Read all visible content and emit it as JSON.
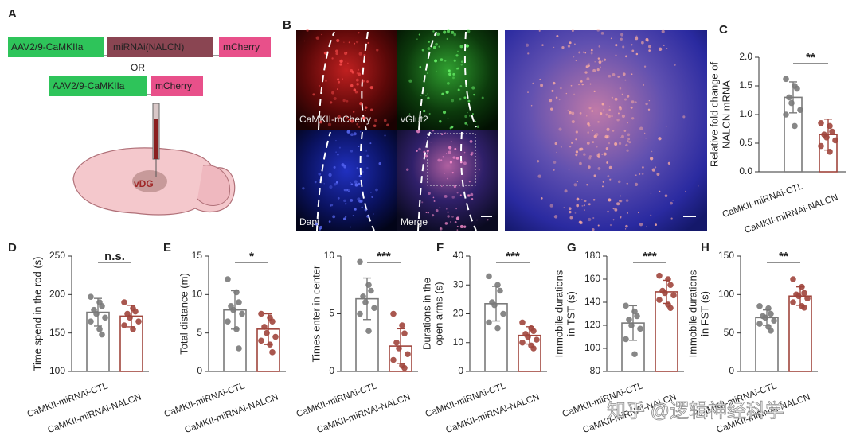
{
  "panel_a": {
    "label": "A",
    "construct_1": [
      "AAV2/9-CaMKIIa",
      "miRNAi(NALCN)",
      "mCherry"
    ],
    "or": "OR",
    "construct_2": [
      "AAV2/9-CaMKIIa",
      "mCherry"
    ],
    "region": "vDG"
  },
  "panel_b": {
    "label": "B",
    "channels": [
      "CaMKII-mCherry",
      "vGlut2",
      "Dapi",
      "Merge"
    ]
  },
  "chart_data": [
    {
      "type": "bar",
      "label": "C",
      "ylabel": [
        "Relative fold change of",
        "NALCN mRNA"
      ],
      "categories": [
        "CaMKII-miRNAi-CTL",
        "CaMKII-miRNAi-NALCN"
      ],
      "colors": [
        "#7a7a7a",
        "#a0453c"
      ],
      "values": [
        1.3,
        0.65
      ],
      "errors": [
        0.27,
        0.27
      ],
      "points": [
        [
          1.62,
          1.5,
          1.45,
          1.3,
          1.2,
          1.08,
          1.0,
          0.8
        ],
        [
          0.85,
          0.8,
          0.7,
          0.65,
          0.6,
          0.55,
          0.45,
          0.35
        ]
      ],
      "significance": "**",
      "ylim": [
        0,
        2.0
      ],
      "yticks": [
        {
          "value": 0,
          "label": "0.0"
        },
        0.5,
        {
          "value": 1,
          "label": "1.0"
        },
        1.5,
        {
          "value": 2,
          "label": "2.0"
        }
      ]
    },
    {
      "type": "bar",
      "label": "D",
      "ylabel": [
        "Time spend in the rod (s)"
      ],
      "categories": [
        "CaMKII-miRNAi-CTL",
        "CaMKII-miRNAi-NALCN"
      ],
      "colors": [
        "#7a7a7a",
        "#a0453c"
      ],
      "values": [
        177,
        172
      ],
      "errors": [
        18,
        14
      ],
      "points": [
        [
          197,
          190,
          185,
          180,
          175,
          170,
          165,
          155,
          148
        ],
        [
          190,
          182,
          178,
          175,
          170,
          165,
          160,
          155
        ]
      ],
      "significance": "n.s.",
      "ylim": [
        100,
        250
      ],
      "yticks": [
        100,
        150,
        200,
        250
      ]
    },
    {
      "type": "bar",
      "label": "E",
      "ylabel": [
        "Total distance (m)"
      ],
      "categories": [
        "CaMKII-miRNAi-CTL",
        "CaMKII-miRNAi-NALCN"
      ],
      "colors": [
        "#7a7a7a",
        "#a0453c"
      ],
      "values": [
        8,
        5.5
      ],
      "errors": [
        2.5,
        2
      ],
      "points": [
        [
          12,
          10.3,
          9,
          8.5,
          8,
          7.5,
          6.5,
          5.5,
          3
        ],
        [
          7.5,
          7,
          6.5,
          5.8,
          5,
          4.5,
          4,
          3.5,
          2.5
        ]
      ],
      "significance": "*",
      "ylim": [
        0,
        15
      ],
      "yticks": [
        0,
        5,
        10,
        15
      ]
    },
    {
      "type": "bar",
      "ylabel": [
        "Times enter in center"
      ],
      "categories": [
        "CaMKII-miRNAi-CTL",
        "CaMKII-miRNAi-NALCN"
      ],
      "colors": [
        "#7a7a7a",
        "#a0453c"
      ],
      "values": [
        6.3,
        2.2
      ],
      "errors": [
        1.8,
        1.5
      ],
      "points": [
        [
          9.5,
          7.5,
          7,
          6.5,
          6,
          5.5,
          5,
          3.5
        ],
        [
          5,
          4,
          3.3,
          2.5,
          2,
          1.5,
          1,
          0.5,
          0.3
        ]
      ],
      "significance": "***",
      "ylim": [
        0,
        10
      ],
      "yticks": [
        0,
        5,
        10
      ]
    },
    {
      "type": "bar",
      "label": "F",
      "ylabel": [
        "Durations in the",
        "open arms (s)"
      ],
      "categories": [
        "CaMKII-miRNAi-CTL",
        "CaMKII-miRNAi-NALCN"
      ],
      "colors": [
        "#7a7a7a",
        "#a0453c"
      ],
      "values": [
        23.5,
        12.5
      ],
      "errors": [
        6,
        3
      ],
      "points": [
        [
          33,
          30,
          28,
          24,
          23,
          20,
          17,
          15
        ],
        [
          17,
          15,
          14,
          13,
          12,
          11,
          10,
          9,
          8
        ]
      ],
      "significance": "***",
      "ylim": [
        0,
        40
      ],
      "yticks": [
        0,
        10,
        20,
        30,
        40
      ]
    },
    {
      "type": "bar",
      "label": "G",
      "ylabel": [
        "Immobile durations",
        "in TST (s)"
      ],
      "categories": [
        "CaMKII-miRNAi-CTL",
        "CaMKII-miRNAi-NALCN"
      ],
      "colors": [
        "#7a7a7a",
        "#a0453c"
      ],
      "values": [
        122,
        149
      ],
      "errors": [
        15,
        10
      ],
      "points": [
        [
          137,
          132,
          128,
          125,
          120,
          117,
          108,
          95
        ],
        [
          163,
          160,
          155,
          150,
          148,
          146,
          142,
          138,
          135
        ]
      ],
      "significance": "***",
      "ylim": [
        80,
        180
      ],
      "yticks": [
        80,
        100,
        120,
        140,
        160,
        180
      ]
    },
    {
      "type": "bar",
      "label": "H",
      "ylabel": [
        "Immobile durations",
        "in FST (s)"
      ],
      "categories": [
        "CaMKII-miRNAi-CTL",
        "CaMKII-miRNAi-NALCN"
      ],
      "colors": [
        "#7a7a7a",
        "#a0453c"
      ],
      "values": [
        70,
        98
      ],
      "errors": [
        10,
        12
      ],
      "points": [
        [
          85,
          82,
          75,
          72,
          70,
          66,
          62,
          58,
          53
        ],
        [
          120,
          110,
          102,
          100,
          98,
          95,
          90,
          85,
          83
        ]
      ],
      "significance": "**",
      "ylim": [
        0,
        150
      ],
      "yticks": [
        0,
        50,
        100,
        150
      ]
    }
  ],
  "watermark": "知乎 @逻辑神经科学"
}
